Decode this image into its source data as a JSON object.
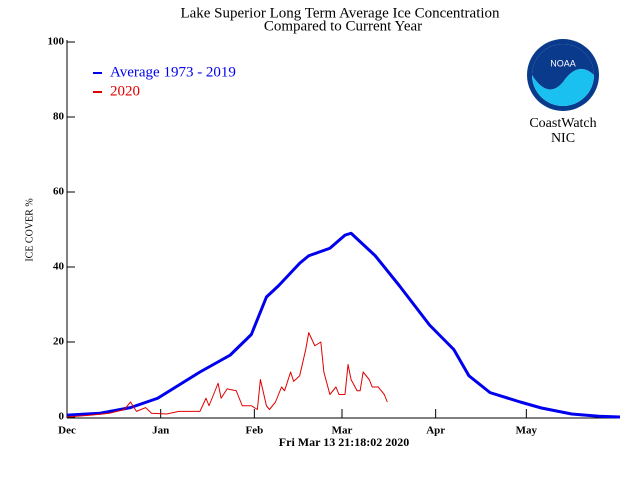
{
  "chart_data": {
    "type": "line",
    "title": "Lake Superior Long Term Average Ice Concentration",
    "subtitle": "Compared to Current Year",
    "ylabel": "ICE COVER %",
    "timestamp": "Fri Mar 13 21:18:02 2020",
    "logo_text": "NOAA",
    "credit": [
      "CoastWatch",
      "NIC"
    ],
    "xlim": [
      0,
      183
    ],
    "ylim": [
      0,
      100
    ],
    "xticks": [
      {
        "value": 0,
        "label": "Dec"
      },
      {
        "value": 31,
        "label": "Jan"
      },
      {
        "value": 62,
        "label": "Feb"
      },
      {
        "value": 91,
        "label": "Mar"
      },
      {
        "value": 122,
        "label": "Apr"
      },
      {
        "value": 152,
        "label": "May"
      }
    ],
    "yticks": [
      0,
      20,
      40,
      60,
      80,
      100
    ],
    "series": [
      {
        "name": "Average 1973 - 2019",
        "color": "#0000ee",
        "x": [
          0,
          11,
          21,
          30,
          37,
          44,
          54,
          61,
          66,
          70,
          77,
          80,
          87,
          92,
          94,
          102,
          110,
          120,
          128,
          133,
          140,
          150,
          157,
          167,
          176,
          183
        ],
        "values": [
          0.5,
          1,
          2.5,
          5,
          8.5,
          12,
          16.5,
          22,
          32,
          35,
          41,
          43,
          45,
          48.5,
          49,
          43,
          35,
          24.5,
          18,
          11,
          6.5,
          4,
          2.4,
          0.8,
          0.2,
          0
        ]
      },
      {
        "name": "2020",
        "color": "#e00000",
        "x": [
          0,
          8,
          14,
          19,
          21,
          23,
          26,
          28,
          33,
          37,
          44,
          46,
          47,
          50,
          51,
          53,
          56,
          58,
          61,
          63,
          64,
          66,
          67,
          69,
          71,
          72,
          74,
          75,
          77,
          79,
          80,
          82,
          84,
          85,
          87,
          89,
          90,
          92,
          93,
          94,
          96,
          97,
          98,
          100,
          101,
          103,
          105,
          106
        ],
        "values": [
          0,
          0.5,
          1,
          2,
          4,
          1.5,
          2.5,
          1,
          0.8,
          1.5,
          1.5,
          5,
          3,
          9,
          5,
          7.5,
          7,
          3,
          3,
          2,
          10,
          3,
          2,
          4,
          8,
          7,
          12,
          9.5,
          11,
          18,
          22.5,
          19,
          20,
          12,
          6,
          8,
          6,
          6,
          14,
          10,
          7,
          7,
          12,
          10,
          8,
          8,
          6,
          4
        ]
      }
    ]
  }
}
